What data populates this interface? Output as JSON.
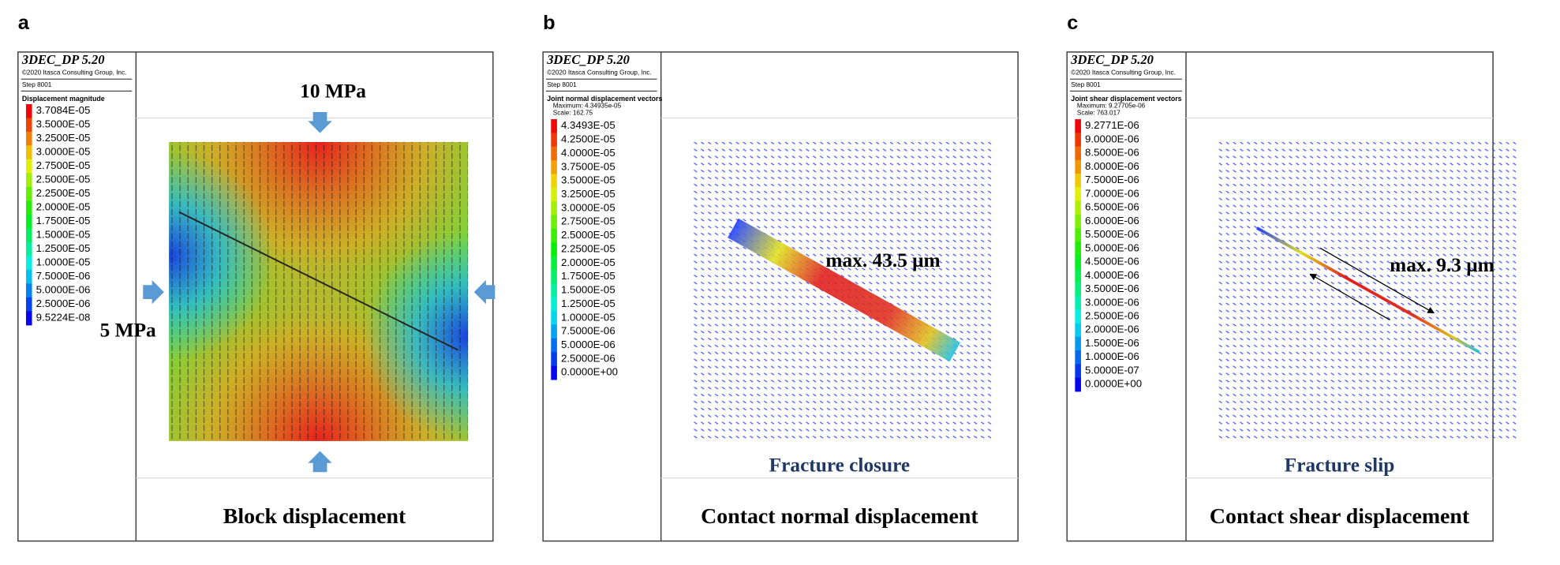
{
  "panels": [
    {
      "label": "a",
      "software": "3DEC_DP 5.20",
      "copyright": "©2020 Itasca Consulting Group, Inc.",
      "step": "Step 8001",
      "legend_title": "Displacement magnitude",
      "legend_entries": [
        "3.7084E-05",
        "3.5000E-05",
        "3.2500E-05",
        "3.0000E-05",
        "2.7500E-05",
        "2.5000E-05",
        "2.2500E-05",
        "2.0000E-05",
        "1.7500E-05",
        "1.5000E-05",
        "1.2500E-05",
        "1.0000E-05",
        "7.5000E-06",
        "5.0000E-06",
        "2.5000E-06",
        "9.5224E-08"
      ],
      "annotations": [
        "10 MPa",
        "5 MPa"
      ],
      "caption": "Block displacement"
    },
    {
      "label": "b",
      "software": "3DEC_DP 5.20",
      "copyright": "©2020 Itasca Consulting Group, Inc.",
      "step": "Step 8001",
      "legend_title": "Joint normal displacement vectors",
      "legend_info": [
        "Maximum: 4.34935e-05",
        "Scale: 162.75"
      ],
      "legend_entries": [
        "4.3493E-05",
        "4.2500E-05",
        "4.0000E-05",
        "3.7500E-05",
        "3.5000E-05",
        "3.2500E-05",
        "3.0000E-05",
        "2.7500E-05",
        "2.5000E-05",
        "2.2500E-05",
        "2.0000E-05",
        "1.7500E-05",
        "1.5000E-05",
        "1.2500E-05",
        "1.0000E-05",
        "7.5000E-06",
        "5.0000E-06",
        "2.5000E-06",
        "0.0000E+00"
      ],
      "annotations": [
        "max. 43.5 μm",
        "Fracture closure"
      ],
      "caption": "Contact normal displacement"
    },
    {
      "label": "c",
      "software": "3DEC_DP 5.20",
      "copyright": "©2020 Itasca Consulting Group, Inc.",
      "step": "Step 8001",
      "legend_title": "Joint shear displacement vectors",
      "legend_info": [
        "Maximum: 9.27705e-06",
        "Scale: 763.017"
      ],
      "legend_entries": [
        "9.2771E-06",
        "9.0000E-06",
        "8.5000E-06",
        "8.0000E-06",
        "7.5000E-06",
        "7.0000E-06",
        "6.5000E-06",
        "6.0000E-06",
        "5.5000E-06",
        "5.0000E-06",
        "4.5000E-06",
        "4.0000E-06",
        "3.5000E-06",
        "3.0000E-06",
        "2.5000E-06",
        "2.0000E-06",
        "1.5000E-06",
        "1.0000E-06",
        "5.0000E-07",
        "0.0000E+00"
      ],
      "annotations": [
        "max. 9.3 μm",
        "Fracture slip"
      ],
      "caption": "Contact shear displacement"
    }
  ]
}
